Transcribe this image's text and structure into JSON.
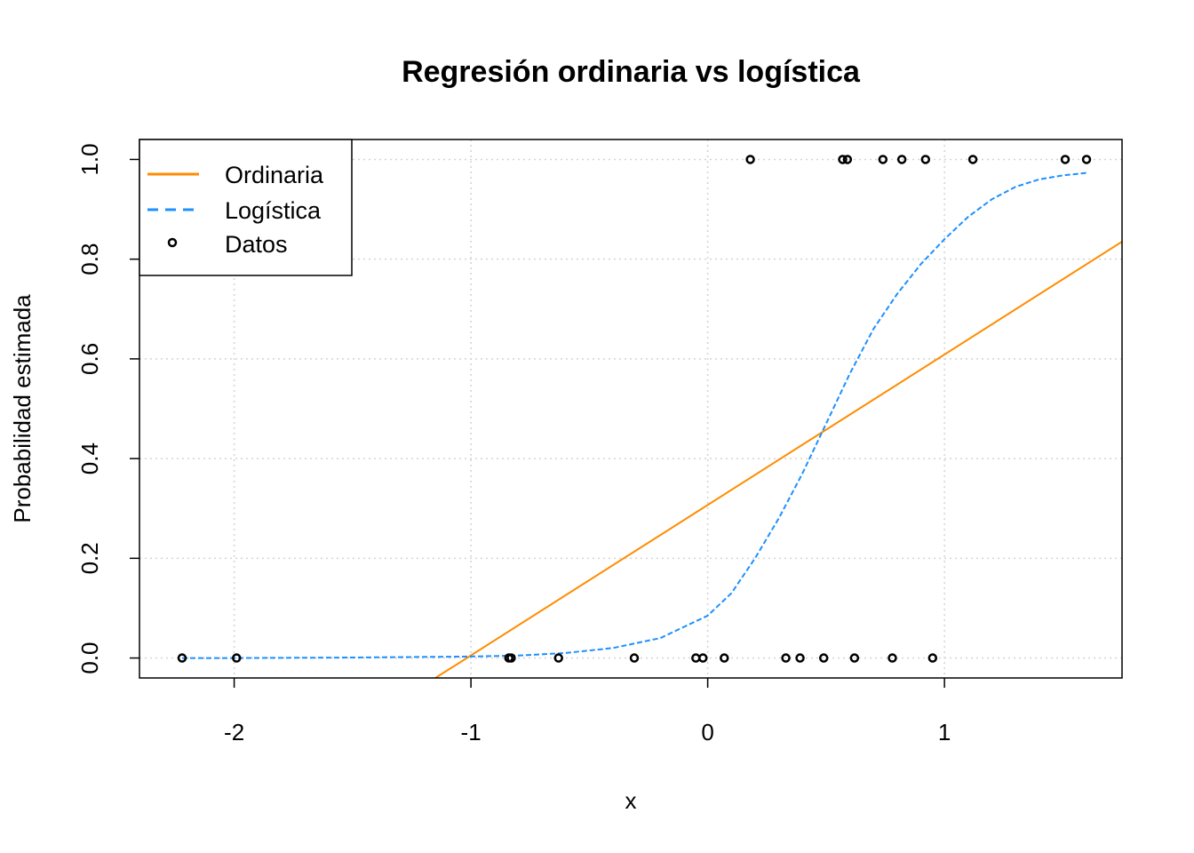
{
  "chart_data": {
    "type": "scatter",
    "title": "Regresión ordinaria vs logística",
    "xlabel": "x",
    "ylabel": "Probabilidad estimada",
    "xlim": [
      -2.4,
      1.75
    ],
    "ylim": [
      -0.04,
      1.04
    ],
    "x_ticks": [
      -2,
      -1,
      0,
      1
    ],
    "x_tick_labels": [
      "-2",
      "-1",
      "0",
      "1"
    ],
    "y_ticks": [
      0,
      0.2,
      0.4,
      0.6,
      0.8,
      1.0
    ],
    "y_tick_labels": [
      "0.0",
      "0.2",
      "0.4",
      "0.6",
      "0.8",
      "1.0"
    ],
    "grid": true,
    "legend_position": "top-left",
    "legend": [
      {
        "label": "Ordinaria",
        "style": "solid-line",
        "color": "#FF8C00"
      },
      {
        "label": "Logística",
        "style": "dashed-line",
        "color": "#1E90FF"
      },
      {
        "label": "Datos",
        "style": "point",
        "color": "#000000"
      }
    ],
    "series": [
      {
        "name": "Ordinaria",
        "type": "line",
        "color": "#FF8C00",
        "x": [
          -1.15,
          1.75
        ],
        "y": [
          -0.04,
          0.835
        ]
      },
      {
        "name": "Logística",
        "type": "line",
        "dashed": true,
        "color": "#1E90FF",
        "x": [
          -2.22,
          -2.0,
          -1.5,
          -1.0,
          -0.8,
          -0.6,
          -0.4,
          -0.2,
          0.0,
          0.1,
          0.2,
          0.3,
          0.4,
          0.5,
          0.6,
          0.7,
          0.8,
          0.9,
          1.0,
          1.1,
          1.2,
          1.3,
          1.4,
          1.5,
          1.6
        ],
        "y": [
          0.0,
          0.0,
          0.001,
          0.003,
          0.005,
          0.01,
          0.02,
          0.04,
          0.085,
          0.13,
          0.2,
          0.28,
          0.37,
          0.47,
          0.57,
          0.66,
          0.73,
          0.79,
          0.84,
          0.885,
          0.92,
          0.945,
          0.96,
          0.968,
          0.973
        ]
      },
      {
        "name": "Datos",
        "type": "scatter",
        "color": "#000000",
        "x": [
          -2.22,
          -1.99,
          -0.84,
          -0.83,
          -0.63,
          -0.31,
          -0.05,
          -0.02,
          0.07,
          0.33,
          0.39,
          0.49,
          0.62,
          0.78,
          0.95,
          0.18,
          0.57,
          0.59,
          0.74,
          0.82,
          0.92,
          1.12,
          1.51,
          1.6
        ],
        "y": [
          0,
          0,
          0,
          0,
          0,
          0,
          0,
          0,
          0,
          0,
          0,
          0,
          0,
          0,
          0,
          1,
          1,
          1,
          1,
          1,
          1,
          1,
          1,
          1
        ]
      }
    ]
  }
}
